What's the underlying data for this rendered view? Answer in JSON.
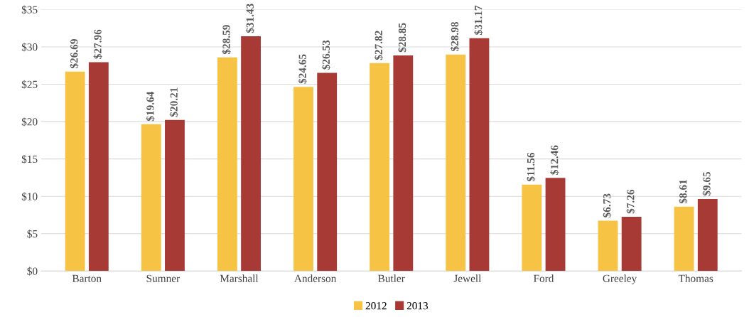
{
  "chart_data": {
    "type": "bar",
    "categories": [
      "Barton",
      "Sumner",
      "Marshall",
      "Anderson",
      "Butler",
      "Jewell",
      "Ford",
      "Greeley",
      "Thomas"
    ],
    "series": [
      {
        "name": "2012",
        "color": "#f6c344",
        "values": [
          26.69,
          19.64,
          28.59,
          24.65,
          27.82,
          28.98,
          11.56,
          6.73,
          8.61
        ],
        "value_labels": [
          "$26.69",
          "$19.64",
          "$28.59",
          "$24.65",
          "$27.82",
          "$28.98",
          "$11.56",
          "$6.73",
          "$8.61"
        ]
      },
      {
        "name": "2013",
        "color": "#a83a36",
        "values": [
          27.96,
          20.21,
          31.43,
          26.53,
          28.85,
          31.17,
          12.46,
          7.26,
          9.65
        ],
        "value_labels": [
          "$27.96",
          "$20.21",
          "$31.43",
          "$26.53",
          "$28.85",
          "$31.17",
          "$12.46",
          "$7.26",
          "$9.65"
        ]
      }
    ],
    "ylim": [
      0,
      35
    ],
    "yticks": [
      {
        "value": 0,
        "label": "$0"
      },
      {
        "value": 5,
        "label": "$5"
      },
      {
        "value": 10,
        "label": "$10"
      },
      {
        "value": 15,
        "label": "$15"
      },
      {
        "value": 20,
        "label": "$20"
      },
      {
        "value": 25,
        "label": "$25"
      },
      {
        "value": 30,
        "label": "$30"
      },
      {
        "value": 35,
        "label": "$35"
      }
    ],
    "grid": "y",
    "legend": "bottom"
  }
}
